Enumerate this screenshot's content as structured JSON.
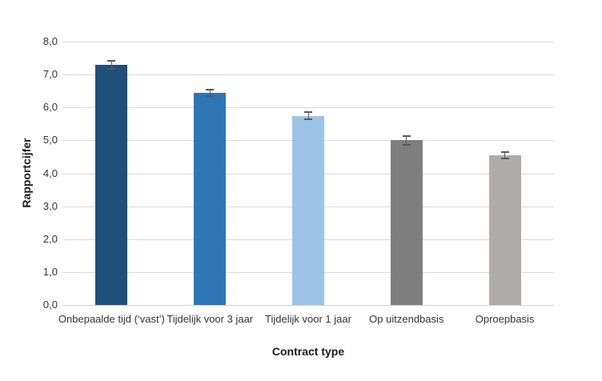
{
  "chart_data": {
    "type": "bar",
    "title": "",
    "xlabel": "Contract type",
    "ylabel": "Rapportcijfer",
    "categories": [
      "Onbepaalde tijd (‘vast’)",
      "Tijdelijk voor 3 jaar",
      "Tijdelijk voor 1 jaar",
      "Op uitzendbasis",
      "Oproepbasis"
    ],
    "values": [
      7.3,
      6.45,
      5.75,
      5.0,
      4.55
    ],
    "errors": [
      0.12,
      0.1,
      0.1,
      0.13,
      0.1
    ],
    "bar_colors": [
      "#1F4E79",
      "#2E75B6",
      "#9DC3E6",
      "#7F7F7F",
      "#AFABAB"
    ],
    "error_bar_color": "#595959",
    "gridline_color": "#D9D9D9",
    "ylim": [
      0,
      8
    ],
    "ytick_values": [
      0,
      1,
      2,
      3,
      4,
      5,
      6,
      7,
      8
    ],
    "ytick_labels": [
      "0,0",
      "1,0",
      "2,0",
      "3,0",
      "4,0",
      "5,0",
      "6,0",
      "7,0",
      "8,0"
    ],
    "grid": true,
    "legend": "none"
  }
}
